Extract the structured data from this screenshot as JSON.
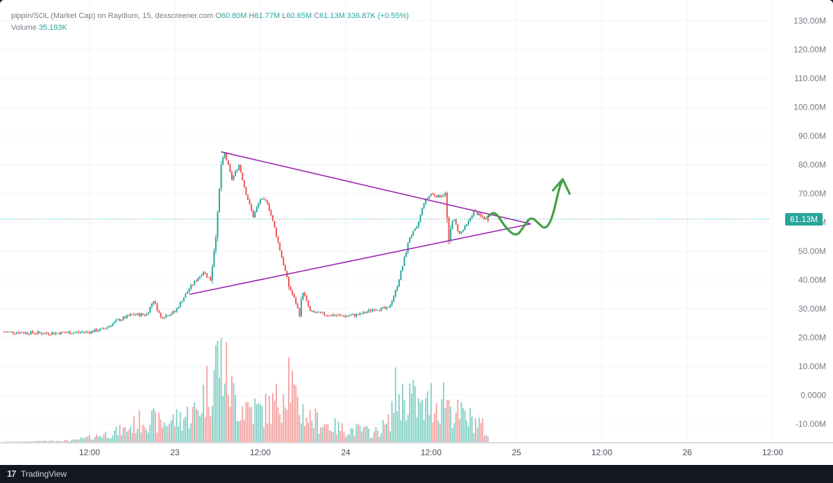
{
  "legend": {
    "symbol": "pippin/SOL (Market Cap) on Raydium, 15, dexscreener.com",
    "open_label": "O",
    "open": "60.80M",
    "high_label": "H",
    "high": "61.77M",
    "low_label": "L",
    "low": "60.65M",
    "close_label": "C",
    "close": "61.13M",
    "change": "336.87K (+0.55%)",
    "volume_label": "Volume",
    "volume": "35.193K"
  },
  "price_badge": "61.13M",
  "footer": {
    "logo": "17",
    "brand": "TradingView"
  },
  "colors": {
    "up": "#26a69a",
    "down": "#ef5350",
    "triangle": "#9c27b0",
    "arrow": "#43a047",
    "grid": "#f0f3fa"
  },
  "chart_data": {
    "type": "candlestick",
    "y_axis_labels": [
      "130.00M",
      "120.00M",
      "110.00M",
      "100.00M",
      "90.00M",
      "80.00M",
      "70.00M",
      "60.00M",
      "50.00M",
      "40.00M",
      "30.00M",
      "20.00M",
      "10.00M",
      "0.0000",
      "-10.00M"
    ],
    "y_axis_values": [
      130,
      120,
      110,
      100,
      90,
      80,
      70,
      60,
      50,
      40,
      30,
      20,
      10,
      0,
      -10
    ],
    "x_axis_labels": [
      "12:00",
      "23",
      "12:00",
      "24",
      "12:00",
      "25",
      "12:00",
      "26",
      "12:00"
    ],
    "x_axis_hours": [
      12,
      24,
      36,
      48,
      60,
      72,
      84,
      96,
      108
    ],
    "current_price": 61.13,
    "market_cap_path": [
      [
        0,
        22
      ],
      [
        6,
        21.5
      ],
      [
        12,
        22
      ],
      [
        14,
        23
      ],
      [
        16,
        26
      ],
      [
        18,
        28
      ],
      [
        20,
        28
      ],
      [
        21,
        33
      ],
      [
        22,
        27
      ],
      [
        24,
        29
      ],
      [
        26,
        37
      ],
      [
        28,
        43
      ],
      [
        29,
        40
      ],
      [
        30,
        62
      ],
      [
        30.5,
        80
      ],
      [
        31,
        84
      ],
      [
        32,
        75
      ],
      [
        33,
        80
      ],
      [
        34,
        70
      ],
      [
        35,
        62
      ],
      [
        36,
        68
      ],
      [
        37,
        67
      ],
      [
        38,
        58
      ],
      [
        39,
        48
      ],
      [
        40,
        38
      ],
      [
        41,
        32
      ],
      [
        41.5,
        28
      ],
      [
        42,
        36
      ],
      [
        43,
        29
      ],
      [
        45,
        28
      ],
      [
        48,
        27.5
      ],
      [
        50,
        28
      ],
      [
        52,
        30
      ],
      [
        54,
        30
      ],
      [
        55,
        36
      ],
      [
        56,
        45
      ],
      [
        57,
        55
      ],
      [
        58,
        58
      ],
      [
        59,
        67
      ],
      [
        60,
        70
      ],
      [
        61,
        69
      ],
      [
        62,
        70
      ],
      [
        62.5,
        52
      ],
      [
        63,
        62
      ],
      [
        64,
        56
      ],
      [
        65,
        59
      ],
      [
        66,
        64
      ],
      [
        67,
        62
      ],
      [
        68,
        61
      ]
    ],
    "volume_path": [
      [
        0,
        0
      ],
      [
        10,
        0.3
      ],
      [
        13,
        1
      ],
      [
        17,
        2
      ],
      [
        20,
        4
      ],
      [
        22,
        3
      ],
      [
        25,
        4
      ],
      [
        27,
        5
      ],
      [
        29,
        10
      ],
      [
        30,
        14
      ],
      [
        31,
        12
      ],
      [
        32,
        8
      ],
      [
        33,
        6
      ],
      [
        34,
        6
      ],
      [
        36,
        5
      ],
      [
        38,
        6
      ],
      [
        39,
        8
      ],
      [
        40,
        12
      ],
      [
        41,
        6
      ],
      [
        43,
        4
      ],
      [
        45,
        3
      ],
      [
        48,
        2
      ],
      [
        50,
        2
      ],
      [
        52,
        1.5
      ],
      [
        54,
        3
      ],
      [
        55,
        8
      ],
      [
        56,
        7
      ],
      [
        57,
        8
      ],
      [
        58,
        6
      ],
      [
        59,
        5
      ],
      [
        60,
        7
      ],
      [
        61,
        6
      ],
      [
        62,
        8
      ],
      [
        63,
        5
      ],
      [
        65,
        4
      ],
      [
        67,
        3
      ],
      [
        68,
        1
      ]
    ],
    "triangle_upper": [
      [
        30.5,
        84.5
      ],
      [
        74,
        59.5
      ]
    ],
    "triangle_lower": [
      [
        26,
        35
      ],
      [
        74,
        59.5
      ]
    ],
    "projection_path": [
      [
        68,
        62
      ],
      [
        69,
        64
      ],
      [
        70.5,
        58
      ],
      [
        72,
        55
      ],
      [
        73,
        58.5
      ],
      [
        74,
        62
      ],
      [
        75,
        60
      ],
      [
        76,
        57.5
      ],
      [
        77,
        61
      ],
      [
        78,
        72
      ],
      [
        78.5,
        75
      ]
    ]
  }
}
